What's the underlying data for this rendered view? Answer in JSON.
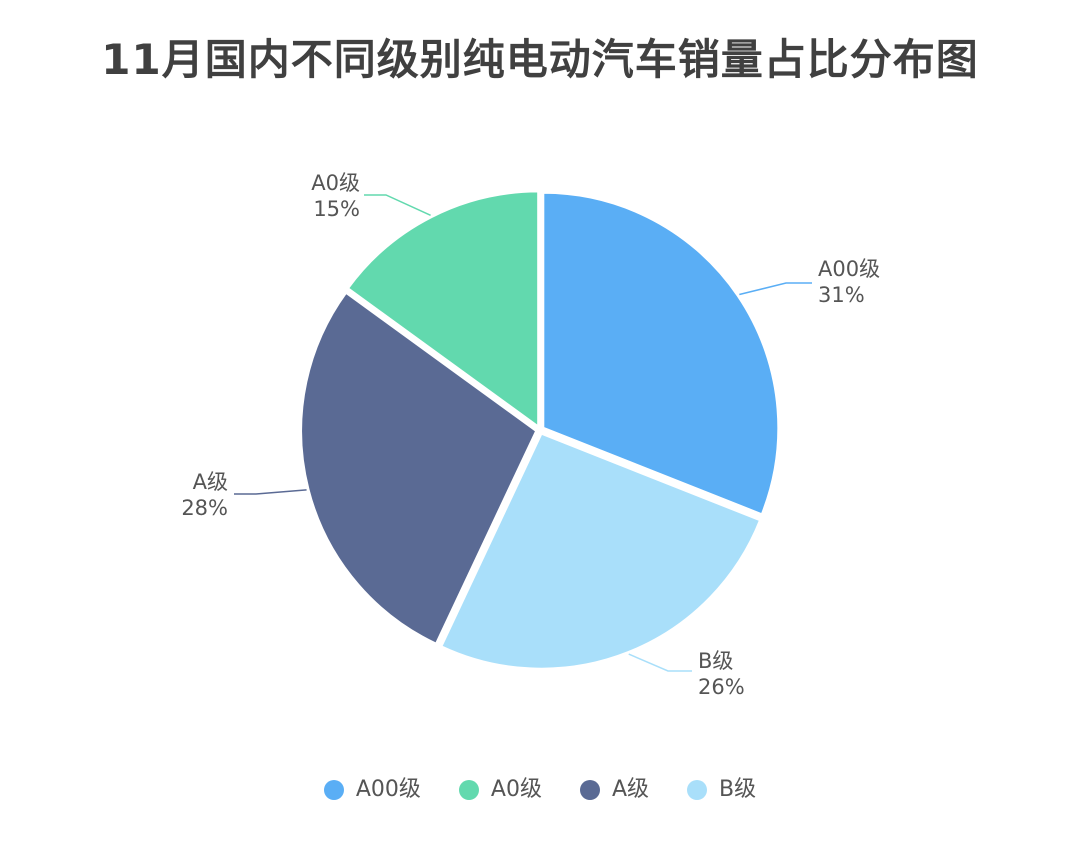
{
  "chart_data": {
    "type": "pie",
    "title": "11月国内不同级别纯电动汽车销量占比分布图",
    "slices": [
      {
        "label": "A00级",
        "value": 31,
        "value_label": "31%",
        "color": "#5AAEF5"
      },
      {
        "label": "B级",
        "value": 26,
        "value_label": "26%",
        "color": "#A9DFFA"
      },
      {
        "label": "A级",
        "value": 28,
        "value_label": "28%",
        "color": "#5A6A94"
      },
      {
        "label": "A0级",
        "value": 15,
        "value_label": "15%",
        "color": "#62D9AE"
      }
    ],
    "legend": {
      "position": "bottom",
      "items": [
        {
          "label": "A00级",
          "color": "#5AAEF5"
        },
        {
          "label": "A0级",
          "color": "#62D9AE"
        },
        {
          "label": "A级",
          "color": "#5A6A94"
        },
        {
          "label": "B级",
          "color": "#A9DFFA"
        }
      ]
    }
  }
}
